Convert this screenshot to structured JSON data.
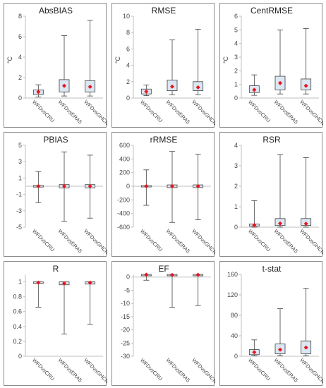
{
  "chart_data": [
    {
      "type": "box",
      "title": "AbsBIAS",
      "ylabel": "°C",
      "ylim": [
        0,
        8
      ],
      "yticks": [
        0,
        2,
        4,
        6,
        8
      ],
      "categories": [
        "WFDvsCRU",
        "WFDvsERA5",
        "WFDvsGHCN"
      ],
      "boxes": [
        {
          "min": 0.1,
          "q1": 0.35,
          "q3": 0.8,
          "max": 1.3,
          "mean": 0.6
        },
        {
          "min": 0.2,
          "q1": 0.6,
          "q3": 1.8,
          "max": 6.1,
          "mean": 1.2
        },
        {
          "min": 0.2,
          "q1": 0.6,
          "q3": 1.7,
          "max": 7.6,
          "mean": 1.1
        }
      ]
    },
    {
      "type": "box",
      "title": "RMSE",
      "ylabel": "°C",
      "ylim": [
        0,
        10
      ],
      "yticks": [
        0,
        2,
        4,
        6,
        8,
        10
      ],
      "categories": [
        "WFDvsCRU",
        "WFDvsERA5",
        "WFDvsGHCN"
      ],
      "boxes": [
        {
          "min": 0.3,
          "q1": 0.5,
          "q3": 1.1,
          "max": 1.6,
          "mean": 0.8
        },
        {
          "min": 0.4,
          "q1": 0.9,
          "q3": 2.2,
          "max": 7.1,
          "mean": 1.4
        },
        {
          "min": 0.4,
          "q1": 0.9,
          "q3": 2.0,
          "max": 8.4,
          "mean": 1.3
        }
      ]
    },
    {
      "type": "box",
      "title": "CentRMSE",
      "ylabel": "°C",
      "ylim": [
        0,
        6
      ],
      "yticks": [
        0,
        1,
        2,
        3,
        4,
        5,
        6
      ],
      "categories": [
        "WFDvsCRU",
        "WFDvsERA5",
        "WFDvsGHCN"
      ],
      "boxes": [
        {
          "min": 0.2,
          "q1": 0.4,
          "q3": 0.9,
          "max": 1.7,
          "mean": 0.6
        },
        {
          "min": 0.3,
          "q1": 0.6,
          "q3": 1.6,
          "max": 5.0,
          "mean": 1.1
        },
        {
          "min": 0.3,
          "q1": 0.6,
          "q3": 1.4,
          "max": 5.1,
          "mean": 0.9
        }
      ]
    },
    {
      "type": "box",
      "title": "PBIAS",
      "ylabel": "",
      "ylim": [
        -5,
        5
      ],
      "yticks": [
        -5,
        -3,
        -1,
        1,
        3,
        5
      ],
      "categories": [
        "WFDvsCRU",
        "WFDvsERA5",
        "WFDvsGHCN"
      ],
      "boxes": [
        {
          "min": -2.0,
          "q1": -0.1,
          "q3": 0.1,
          "max": 1.8,
          "mean": 0.0
        },
        {
          "min": -4.3,
          "q1": -0.2,
          "q3": 0.2,
          "max": 4.2,
          "mean": 0.0
        },
        {
          "min": -3.9,
          "q1": -0.2,
          "q3": 0.2,
          "max": 3.8,
          "mean": 0.0
        }
      ]
    },
    {
      "type": "box",
      "title": "rRMSE",
      "ylabel": "",
      "ylim": [
        -600,
        600
      ],
      "yticks": [
        -600,
        -400,
        -200,
        0,
        200,
        400,
        600
      ],
      "categories": [
        "WFDvsCRU",
        "WFDvsERA5",
        "WFDvsGHCN"
      ],
      "boxes": [
        {
          "min": -280,
          "q1": -10,
          "q3": 10,
          "max": 240,
          "mean": 0
        },
        {
          "min": -530,
          "q1": -20,
          "q3": 20,
          "max": 510,
          "mean": 0
        },
        {
          "min": -490,
          "q1": -20,
          "q3": 20,
          "max": 470,
          "mean": 0
        }
      ]
    },
    {
      "type": "box",
      "title": "RSR",
      "ylabel": "",
      "ylim": [
        0,
        4
      ],
      "yticks": [
        0,
        1,
        2,
        3,
        4
      ],
      "categories": [
        "WFDvsCRU",
        "WFDvsERA5",
        "WFDvsGHCN"
      ],
      "boxes": [
        {
          "min": 0.0,
          "q1": 0.05,
          "q3": 0.15,
          "max": 1.3,
          "mean": 0.1
        },
        {
          "min": 0.0,
          "q1": 0.08,
          "q3": 0.42,
          "max": 3.55,
          "mean": 0.18
        },
        {
          "min": 0.0,
          "q1": 0.08,
          "q3": 0.42,
          "max": 3.4,
          "mean": 0.17
        }
      ]
    },
    {
      "type": "box",
      "title": "R",
      "ylabel": "",
      "ylim": [
        0,
        1.1
      ],
      "yticks": [
        0,
        0.2,
        0.4,
        0.6,
        0.8,
        1
      ],
      "categories": [
        "WFDvsCRU",
        "WFDvsERA5",
        "WFDvsGHCN"
      ],
      "boxes": [
        {
          "min": 0.66,
          "q1": 0.98,
          "q3": 1.0,
          "max": 1.0,
          "mean": 0.99
        },
        {
          "min": 0.3,
          "q1": 0.96,
          "q3": 1.0,
          "max": 1.0,
          "mean": 0.98
        },
        {
          "min": 0.43,
          "q1": 0.97,
          "q3": 1.0,
          "max": 1.0,
          "mean": 0.99
        }
      ]
    },
    {
      "type": "box",
      "title": "EF",
      "ylabel": "",
      "ylim": [
        -30,
        1
      ],
      "yticks": [
        -30,
        -25,
        -20,
        -15,
        -10,
        -5,
        0
      ],
      "categories": [
        "WFDvsCRU",
        "WFDvsERA5",
        "WFDvsGHCN"
      ],
      "boxes": [
        {
          "min": -1.2,
          "q1": 0.7,
          "q3": 1.0,
          "max": 1.0,
          "mean": 0.9
        },
        {
          "min": -11.5,
          "q1": 0.5,
          "q3": 1.0,
          "max": 1.0,
          "mean": 0.8
        },
        {
          "min": -10.8,
          "q1": 0.6,
          "q3": 1.0,
          "max": 1.0,
          "mean": 0.85
        }
      ]
    },
    {
      "type": "box",
      "title": "t-stat",
      "ylabel": "",
      "ylim": [
        0,
        160
      ],
      "yticks": [
        0,
        40,
        80,
        120,
        160
      ],
      "categories": [
        "WFDvsCRU",
        "WFDvsERA5",
        "WFDvsGHCN"
      ],
      "boxes": [
        {
          "min": 1,
          "q1": 3,
          "q3": 13,
          "max": 32,
          "mean": 8
        },
        {
          "min": 1,
          "q1": 5,
          "q3": 24,
          "max": 93,
          "mean": 13
        },
        {
          "min": 1,
          "q1": 5,
          "q3": 30,
          "max": 133,
          "mean": 17
        }
      ]
    }
  ],
  "colors": {
    "box_fill": "#dbe7f3",
    "box_stroke": "#404040",
    "whisker": "#404040",
    "mean_marker": "#e8151b",
    "zero_line": "#bfbfbf",
    "axis": "#bfbfbf",
    "panel_border": "#8c8c8c"
  }
}
